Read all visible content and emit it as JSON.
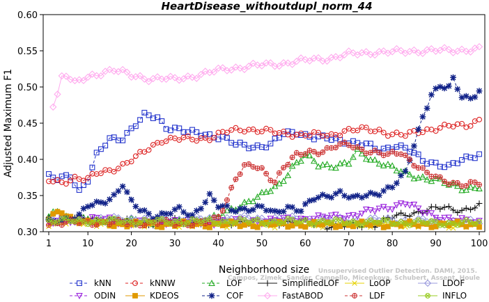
{
  "chart_data": {
    "type": "line",
    "title": "HeartDisease_withoutdupl_norm_44",
    "xlabel": "Neighborhood size",
    "ylabel": "Adjusted Maximum F1",
    "xlim": [
      1,
      100
    ],
    "ylim": [
      0.3,
      0.6
    ],
    "xticks": [
      1,
      10,
      20,
      30,
      40,
      50,
      60,
      70,
      80,
      90,
      100
    ],
    "yticks": [
      "0.30",
      "0.35",
      "0.40",
      "0.45",
      "0.50",
      "0.55",
      "0.60"
    ],
    "grid": false,
    "legend_position": "bottom",
    "watermark": "Unsupervised Outlier Detection. DAMI, 2015. Campos, Zimek, Sander, Campello, Micenkova, Schubert, Assent, Houle",
    "series": [
      {
        "name": "kNN",
        "color": "#2233cc",
        "marker": "square",
        "dash": "4,3",
        "keys": [
          [
            1,
            0.376
          ],
          [
            3,
            0.372
          ],
          [
            6,
            0.378
          ],
          [
            8,
            0.357
          ],
          [
            10,
            0.372
          ],
          [
            12,
            0.405
          ],
          [
            15,
            0.428
          ],
          [
            18,
            0.43
          ],
          [
            21,
            0.448
          ],
          [
            23,
            0.46
          ],
          [
            26,
            0.458
          ],
          [
            28,
            0.445
          ],
          [
            30,
            0.443
          ],
          [
            33,
            0.437
          ],
          [
            37,
            0.435
          ],
          [
            41,
            0.43
          ],
          [
            44,
            0.42
          ],
          [
            48,
            0.418
          ],
          [
            52,
            0.42
          ],
          [
            55,
            0.435
          ],
          [
            58,
            0.438
          ],
          [
            62,
            0.43
          ],
          [
            66,
            0.428
          ],
          [
            70,
            0.425
          ],
          [
            74,
            0.42
          ],
          [
            77,
            0.412
          ],
          [
            81,
            0.42
          ],
          [
            84,
            0.412
          ],
          [
            87,
            0.398
          ],
          [
            90,
            0.395
          ],
          [
            93,
            0.39
          ],
          [
            96,
            0.398
          ],
          [
            100,
            0.408
          ]
        ]
      },
      {
        "name": "kNNW",
        "color": "#dd2222",
        "marker": "circle",
        "dash": "4,3",
        "keys": [
          [
            1,
            0.37
          ],
          [
            4,
            0.368
          ],
          [
            7,
            0.375
          ],
          [
            10,
            0.372
          ],
          [
            12,
            0.38
          ],
          [
            15,
            0.385
          ],
          [
            18,
            0.392
          ],
          [
            21,
            0.402
          ],
          [
            24,
            0.415
          ],
          [
            27,
            0.427
          ],
          [
            30,
            0.428
          ],
          [
            34,
            0.428
          ],
          [
            38,
            0.43
          ],
          [
            42,
            0.438
          ],
          [
            46,
            0.442
          ],
          [
            50,
            0.44
          ],
          [
            54,
            0.436
          ],
          [
            58,
            0.435
          ],
          [
            62,
            0.434
          ],
          [
            66,
            0.433
          ],
          [
            69,
            0.44
          ],
          [
            73,
            0.441
          ],
          [
            77,
            0.44
          ],
          [
            80,
            0.435
          ],
          [
            83,
            0.433
          ],
          [
            87,
            0.44
          ],
          [
            90,
            0.443
          ],
          [
            94,
            0.446
          ],
          [
            97,
            0.447
          ],
          [
            100,
            0.455
          ]
        ]
      },
      {
        "name": "LOF",
        "color": "#22aa22",
        "marker": "triangle-up",
        "dash": "4,3",
        "keys": [
          [
            1,
            0.32
          ],
          [
            3,
            0.33
          ],
          [
            6,
            0.318
          ],
          [
            10,
            0.315
          ],
          [
            15,
            0.315
          ],
          [
            20,
            0.315
          ],
          [
            25,
            0.312
          ],
          [
            30,
            0.312
          ],
          [
            35,
            0.315
          ],
          [
            40,
            0.32
          ],
          [
            43,
            0.33
          ],
          [
            46,
            0.34
          ],
          [
            50,
            0.35
          ],
          [
            54,
            0.365
          ],
          [
            57,
            0.39
          ],
          [
            60,
            0.405
          ],
          [
            63,
            0.392
          ],
          [
            67,
            0.392
          ],
          [
            70,
            0.395
          ],
          [
            72,
            0.41
          ],
          [
            75,
            0.4
          ],
          [
            78,
            0.395
          ],
          [
            81,
            0.385
          ],
          [
            84,
            0.378
          ],
          [
            87,
            0.375
          ],
          [
            90,
            0.372
          ],
          [
            93,
            0.365
          ],
          [
            97,
            0.36
          ],
          [
            100,
            0.362
          ]
        ]
      },
      {
        "name": "SimplifiedLOF",
        "color": "#111111",
        "marker": "plus",
        "dash": "",
        "keys": [
          [
            1,
            0.318
          ],
          [
            5,
            0.318
          ],
          [
            10,
            0.318
          ],
          [
            15,
            0.316
          ],
          [
            20,
            0.313
          ],
          [
            25,
            0.312
          ],
          [
            30,
            0.315
          ],
          [
            35,
            0.313
          ],
          [
            40,
            0.313
          ],
          [
            45,
            0.313
          ],
          [
            50,
            0.313
          ],
          [
            55,
            0.313
          ],
          [
            60,
            0.313
          ],
          [
            65,
            0.308
          ],
          [
            70,
            0.308
          ],
          [
            76,
            0.31
          ],
          [
            80,
            0.32
          ],
          [
            84,
            0.325
          ],
          [
            88,
            0.33
          ],
          [
            92,
            0.333
          ],
          [
            96,
            0.33
          ],
          [
            100,
            0.335
          ]
        ]
      },
      {
        "name": "LoOP",
        "color": "#e6d200",
        "marker": "x",
        "dash": "",
        "keys": [
          [
            1,
            0.312
          ],
          [
            10,
            0.312
          ],
          [
            20,
            0.311
          ],
          [
            30,
            0.31
          ],
          [
            40,
            0.31
          ],
          [
            50,
            0.31
          ],
          [
            60,
            0.31
          ],
          [
            70,
            0.31
          ],
          [
            80,
            0.31
          ],
          [
            90,
            0.309
          ],
          [
            100,
            0.308
          ]
        ]
      },
      {
        "name": "LDOF",
        "color": "#9999dd",
        "marker": "diamond",
        "dash": "",
        "keys": [
          [
            1,
            0.315
          ],
          [
            10,
            0.316
          ],
          [
            20,
            0.318
          ],
          [
            30,
            0.316
          ],
          [
            40,
            0.318
          ],
          [
            50,
            0.318
          ],
          [
            60,
            0.317
          ],
          [
            70,
            0.316
          ],
          [
            80,
            0.316
          ],
          [
            90,
            0.314
          ],
          [
            100,
            0.313
          ]
        ]
      },
      {
        "name": "ODIN",
        "color": "#9922dd",
        "marker": "triangle-down",
        "dash": "4,3",
        "keys": [
          [
            1,
            0.312
          ],
          [
            5,
            0.315
          ],
          [
            10,
            0.318
          ],
          [
            15,
            0.316
          ],
          [
            20,
            0.312
          ],
          [
            25,
            0.313
          ],
          [
            30,
            0.315
          ],
          [
            35,
            0.312
          ],
          [
            40,
            0.314
          ],
          [
            45,
            0.314
          ],
          [
            50,
            0.315
          ],
          [
            55,
            0.316
          ],
          [
            60,
            0.318
          ],
          [
            65,
            0.32
          ],
          [
            70,
            0.322
          ],
          [
            75,
            0.328
          ],
          [
            80,
            0.335
          ],
          [
            83,
            0.34
          ],
          [
            86,
            0.33
          ],
          [
            90,
            0.322
          ],
          [
            95,
            0.315
          ],
          [
            100,
            0.314
          ]
        ]
      },
      {
        "name": "KDEOS",
        "color": "#e09900",
        "marker": "square-filled",
        "dash": "",
        "keys": [
          [
            1,
            0.318
          ],
          [
            4,
            0.328
          ],
          [
            6,
            0.32
          ],
          [
            10,
            0.312
          ],
          [
            20,
            0.31
          ],
          [
            30,
            0.31
          ],
          [
            40,
            0.31
          ],
          [
            50,
            0.31
          ],
          [
            60,
            0.31
          ],
          [
            70,
            0.31
          ],
          [
            80,
            0.31
          ],
          [
            90,
            0.31
          ],
          [
            100,
            0.31
          ]
        ]
      },
      {
        "name": "COF",
        "color": "#112288",
        "marker": "star",
        "dash": "4,3",
        "keys": [
          [
            1,
            0.313
          ],
          [
            5,
            0.318
          ],
          [
            8,
            0.322
          ],
          [
            10,
            0.335
          ],
          [
            13,
            0.34
          ],
          [
            16,
            0.35
          ],
          [
            18,
            0.365
          ],
          [
            20,
            0.34
          ],
          [
            22,
            0.33
          ],
          [
            25,
            0.322
          ],
          [
            28,
            0.325
          ],
          [
            31,
            0.33
          ],
          [
            34,
            0.322
          ],
          [
            38,
            0.35
          ],
          [
            40,
            0.335
          ],
          [
            43,
            0.33
          ],
          [
            46,
            0.332
          ],
          [
            50,
            0.333
          ],
          [
            53,
            0.325
          ],
          [
            56,
            0.335
          ],
          [
            59,
            0.33
          ],
          [
            62,
            0.345
          ],
          [
            65,
            0.35
          ],
          [
            68,
            0.355
          ],
          [
            71,
            0.345
          ],
          [
            74,
            0.35
          ],
          [
            77,
            0.355
          ],
          [
            80,
            0.362
          ],
          [
            83,
            0.38
          ],
          [
            85,
            0.42
          ],
          [
            87,
            0.46
          ],
          [
            89,
            0.49
          ],
          [
            91,
            0.5
          ],
          [
            93,
            0.498
          ],
          [
            94,
            0.51
          ],
          [
            96,
            0.488
          ],
          [
            98,
            0.485
          ],
          [
            100,
            0.495
          ]
        ]
      },
      {
        "name": "FastABOD",
        "color": "#ffaaee",
        "marker": "diamond",
        "dash": "",
        "keys": [
          [
            2,
            0.476
          ],
          [
            3,
            0.49
          ],
          [
            4,
            0.515
          ],
          [
            5,
            0.518
          ],
          [
            7,
            0.505
          ],
          [
            9,
            0.51
          ],
          [
            11,
            0.515
          ],
          [
            14,
            0.522
          ],
          [
            16,
            0.524
          ],
          [
            18,
            0.52
          ],
          [
            20,
            0.515
          ],
          [
            24,
            0.512
          ],
          [
            27,
            0.512
          ],
          [
            30,
            0.51
          ],
          [
            34,
            0.515
          ],
          [
            38,
            0.52
          ],
          [
            42,
            0.525
          ],
          [
            46,
            0.528
          ],
          [
            50,
            0.53
          ],
          [
            54,
            0.532
          ],
          [
            58,
            0.535
          ],
          [
            62,
            0.538
          ],
          [
            66,
            0.54
          ],
          [
            70,
            0.545
          ],
          [
            75,
            0.548
          ],
          [
            80,
            0.548
          ],
          [
            85,
            0.55
          ],
          [
            90,
            0.55
          ],
          [
            95,
            0.551
          ],
          [
            100,
            0.552
          ]
        ]
      },
      {
        "name": "LDF",
        "color": "#cc3333",
        "marker": "circle-plus",
        "dash": "4,3",
        "keys": [
          [
            1,
            0.312
          ],
          [
            10,
            0.313
          ],
          [
            20,
            0.312
          ],
          [
            30,
            0.312
          ],
          [
            38,
            0.312
          ],
          [
            40,
            0.32
          ],
          [
            42,
            0.345
          ],
          [
            44,
            0.375
          ],
          [
            46,
            0.39
          ],
          [
            48,
            0.39
          ],
          [
            50,
            0.385
          ],
          [
            53,
            0.37
          ],
          [
            55,
            0.39
          ],
          [
            58,
            0.405
          ],
          [
            61,
            0.41
          ],
          [
            64,
            0.412
          ],
          [
            67,
            0.418
          ],
          [
            70,
            0.42
          ],
          [
            73,
            0.414
          ],
          [
            76,
            0.41
          ],
          [
            79,
            0.405
          ],
          [
            82,
            0.41
          ],
          [
            85,
            0.395
          ],
          [
            88,
            0.38
          ],
          [
            91,
            0.372
          ],
          [
            94,
            0.368
          ],
          [
            97,
            0.365
          ],
          [
            100,
            0.366
          ]
        ]
      },
      {
        "name": "INFLO",
        "color": "#99cc22",
        "marker": "circle-x",
        "dash": "",
        "keys": [
          [
            1,
            0.315
          ],
          [
            10,
            0.315
          ],
          [
            20,
            0.314
          ],
          [
            30,
            0.314
          ],
          [
            40,
            0.314
          ],
          [
            50,
            0.314
          ],
          [
            60,
            0.314
          ],
          [
            70,
            0.313
          ],
          [
            80,
            0.313
          ],
          [
            90,
            0.312
          ],
          [
            100,
            0.312
          ]
        ]
      }
    ]
  }
}
